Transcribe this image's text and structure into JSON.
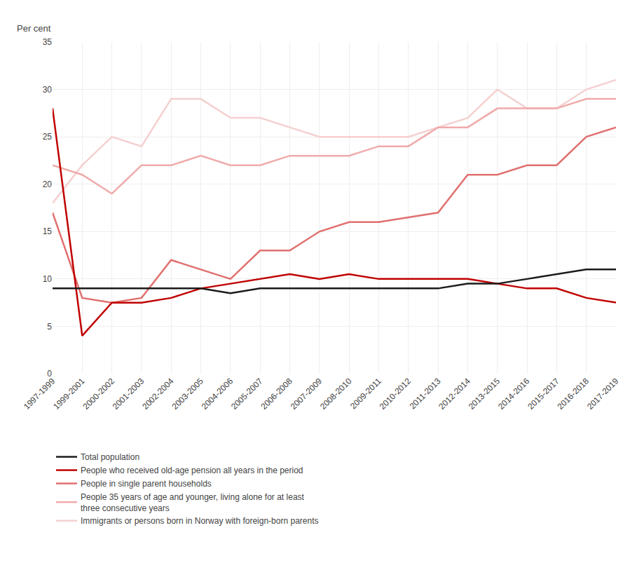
{
  "chart_data": {
    "type": "line",
    "ylabel": "Per cent",
    "categories": [
      "1997-1999",
      "1999-2001",
      "2000-2002",
      "2001-2003",
      "2002-2004",
      "2003-2005",
      "2004-2006",
      "2005-2007",
      "2006-2008",
      "2007-2009",
      "2008-2010",
      "2009-2011",
      "2010-2012",
      "2011-2013",
      "2012-2014",
      "2013-2015",
      "2014-2016",
      "2015-2017",
      "2016-2018",
      "2017-2019"
    ],
    "series": [
      {
        "name": "Immigrants or persons born in Norway with foreign-born parents",
        "color": "#f5d0d0",
        "values": [
          18,
          22,
          25,
          24,
          29,
          29,
          27,
          27,
          26,
          25,
          25,
          25,
          25,
          26,
          27,
          30,
          28,
          28,
          30,
          31
        ]
      },
      {
        "name": "People 35 years of age and younger, living alone for at least\nthree consecutive years",
        "color": "#f0aaaa",
        "values": [
          22,
          21,
          19,
          22,
          22,
          23,
          22,
          22,
          23,
          23,
          23,
          24,
          24,
          26,
          26,
          28,
          28,
          28,
          29,
          29
        ]
      },
      {
        "name": "People in single parent households",
        "color": "#e07070",
        "values": [
          17,
          8,
          7.5,
          8,
          12,
          11,
          10,
          13,
          13,
          15,
          16,
          16,
          16.5,
          17,
          21,
          21,
          22,
          22,
          25,
          26
        ]
      },
      {
        "name": "People who received old-age pension all years in the period",
        "color": "#c00000",
        "values": [
          28,
          4,
          7.5,
          7.5,
          8,
          9,
          9.5,
          10,
          10.5,
          10,
          10.5,
          10,
          10,
          10,
          10,
          9.5,
          9,
          9,
          8,
          7.5
        ]
      },
      {
        "name": "Total population",
        "color": "#1a1a1a",
        "values": [
          9,
          9,
          9,
          9,
          9,
          9,
          8.5,
          9,
          9,
          9,
          9,
          9,
          9,
          9,
          9.5,
          9.5,
          10,
          10.5,
          11,
          11
        ]
      }
    ],
    "ylim": [
      0,
      35
    ],
    "yticks": [
      0,
      5,
      10,
      15,
      20,
      25,
      30,
      35
    ],
    "grid": true,
    "legend": "bottom"
  }
}
